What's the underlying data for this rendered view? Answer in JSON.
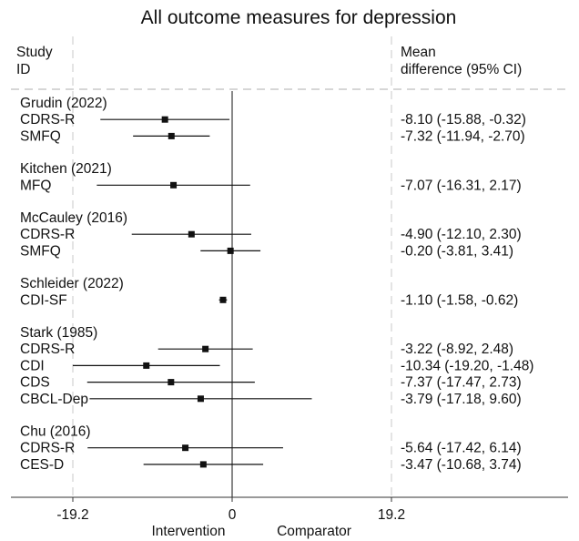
{
  "chart_data": {
    "type": "forest",
    "title": "All outcome measures for depression",
    "headers": {
      "study_line1": "Study",
      "study_line2": "ID",
      "effect_line1": "Mean",
      "effect_line2": "difference (95% CI)"
    },
    "groups": [
      {
        "study": "Grudin (2022)",
        "rows": [
          {
            "measure": "CDRS-R",
            "mean": -8.1,
            "lo": -15.88,
            "hi": -0.32,
            "text": "-8.10 (-15.88, -0.32)"
          },
          {
            "measure": "SMFQ",
            "mean": -7.32,
            "lo": -11.94,
            "hi": -2.7,
            "text": "-7.32 (-11.94, -2.70)"
          }
        ]
      },
      {
        "study": "Kitchen (2021)",
        "rows": [
          {
            "measure": "MFQ",
            "mean": -7.07,
            "lo": -16.31,
            "hi": 2.17,
            "text": "-7.07 (-16.31, 2.17)"
          }
        ]
      },
      {
        "study": "McCauley (2016)",
        "rows": [
          {
            "measure": "CDRS-R",
            "mean": -4.9,
            "lo": -12.1,
            "hi": 2.3,
            "text": "-4.90 (-12.10, 2.30)"
          },
          {
            "measure": "SMFQ",
            "mean": -0.2,
            "lo": -3.81,
            "hi": 3.41,
            "text": "-0.20 (-3.81, 3.41)"
          }
        ]
      },
      {
        "study": "Schleider (2022)",
        "rows": [
          {
            "measure": "CDI-SF",
            "mean": -1.1,
            "lo": -1.58,
            "hi": -0.62,
            "text": "-1.10 (-1.58, -0.62)"
          }
        ]
      },
      {
        "study": "Stark (1985)",
        "rows": [
          {
            "measure": "CDRS-R",
            "mean": -3.22,
            "lo": -8.92,
            "hi": 2.48,
            "text": "-3.22 (-8.92, 2.48)"
          },
          {
            "measure": "CDI",
            "mean": -10.34,
            "lo": -19.2,
            "hi": -1.48,
            "text": "-10.34 (-19.20, -1.48)"
          },
          {
            "measure": "CDS",
            "mean": -7.37,
            "lo": -17.47,
            "hi": 2.73,
            "text": "-7.37 (-17.47, 2.73)"
          },
          {
            "measure": "CBCL-Dep",
            "mean": -3.79,
            "lo": -17.18,
            "hi": 9.6,
            "text": "-3.79 (-17.18, 9.60)"
          }
        ]
      },
      {
        "study": "Chu (2016)",
        "rows": [
          {
            "measure": "CDRS-R",
            "mean": -5.64,
            "lo": -17.42,
            "hi": 6.14,
            "text": "-5.64 (-17.42, 6.14)"
          },
          {
            "measure": "CES-D",
            "mean": -3.47,
            "lo": -10.68,
            "hi": 3.74,
            "text": "-3.47 (-10.68, 3.74)"
          }
        ]
      }
    ],
    "x_ticks": [
      {
        "value": -19.2,
        "label": "-19.2"
      },
      {
        "value": 0,
        "label": "0"
      },
      {
        "value": 19.2,
        "label": "19.2"
      }
    ],
    "xlim": [
      -19.2,
      19.2
    ],
    "left_direction_label": "Intervention",
    "right_direction_label": "Comparator",
    "colors": {
      "line": "#111111",
      "grid": "#d9d9d9",
      "axis": "#333333"
    }
  }
}
